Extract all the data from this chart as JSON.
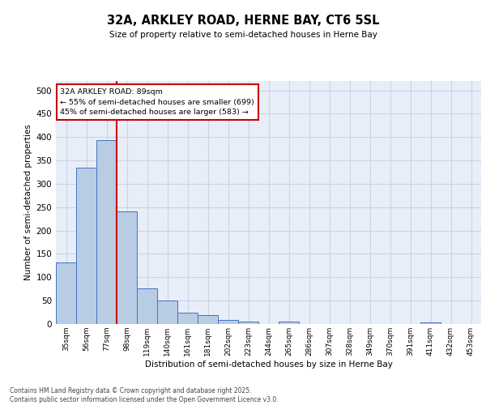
{
  "title": "32A, ARKLEY ROAD, HERNE BAY, CT6 5SL",
  "subtitle": "Size of property relative to semi-detached houses in Herne Bay",
  "xlabel": "Distribution of semi-detached houses by size in Herne Bay",
  "ylabel": "Number of semi-detached properties",
  "footer": "Contains HM Land Registry data © Crown copyright and database right 2025.\nContains public sector information licensed under the Open Government Licence v3.0.",
  "categories": [
    "35sqm",
    "56sqm",
    "77sqm",
    "98sqm",
    "119sqm",
    "140sqm",
    "161sqm",
    "181sqm",
    "202sqm",
    "223sqm",
    "244sqm",
    "265sqm",
    "286sqm",
    "307sqm",
    "328sqm",
    "349sqm",
    "370sqm",
    "391sqm",
    "411sqm",
    "432sqm",
    "453sqm"
  ],
  "values": [
    131,
    335,
    393,
    241,
    76,
    51,
    25,
    19,
    8,
    5,
    0,
    5,
    0,
    0,
    0,
    0,
    0,
    0,
    4,
    0,
    0
  ],
  "bar_color": "#b8cce4",
  "bar_edge_color": "#4472c4",
  "grid_color": "#c8d4e8",
  "background_color": "#e8eef8",
  "vline_index": 2.5,
  "annotation_text_line1": "32A ARKLEY ROAD: 89sqm",
  "annotation_text_line2": "← 55% of semi-detached houses are smaller (699)",
  "annotation_text_line3": "45% of semi-detached houses are larger (583) →",
  "annotation_box_facecolor": "#ffffff",
  "annotation_box_edgecolor": "#cc0000",
  "vline_color": "#cc0000",
  "ylim": [
    0,
    520
  ],
  "yticks": [
    0,
    50,
    100,
    150,
    200,
    250,
    300,
    350,
    400,
    450,
    500
  ]
}
